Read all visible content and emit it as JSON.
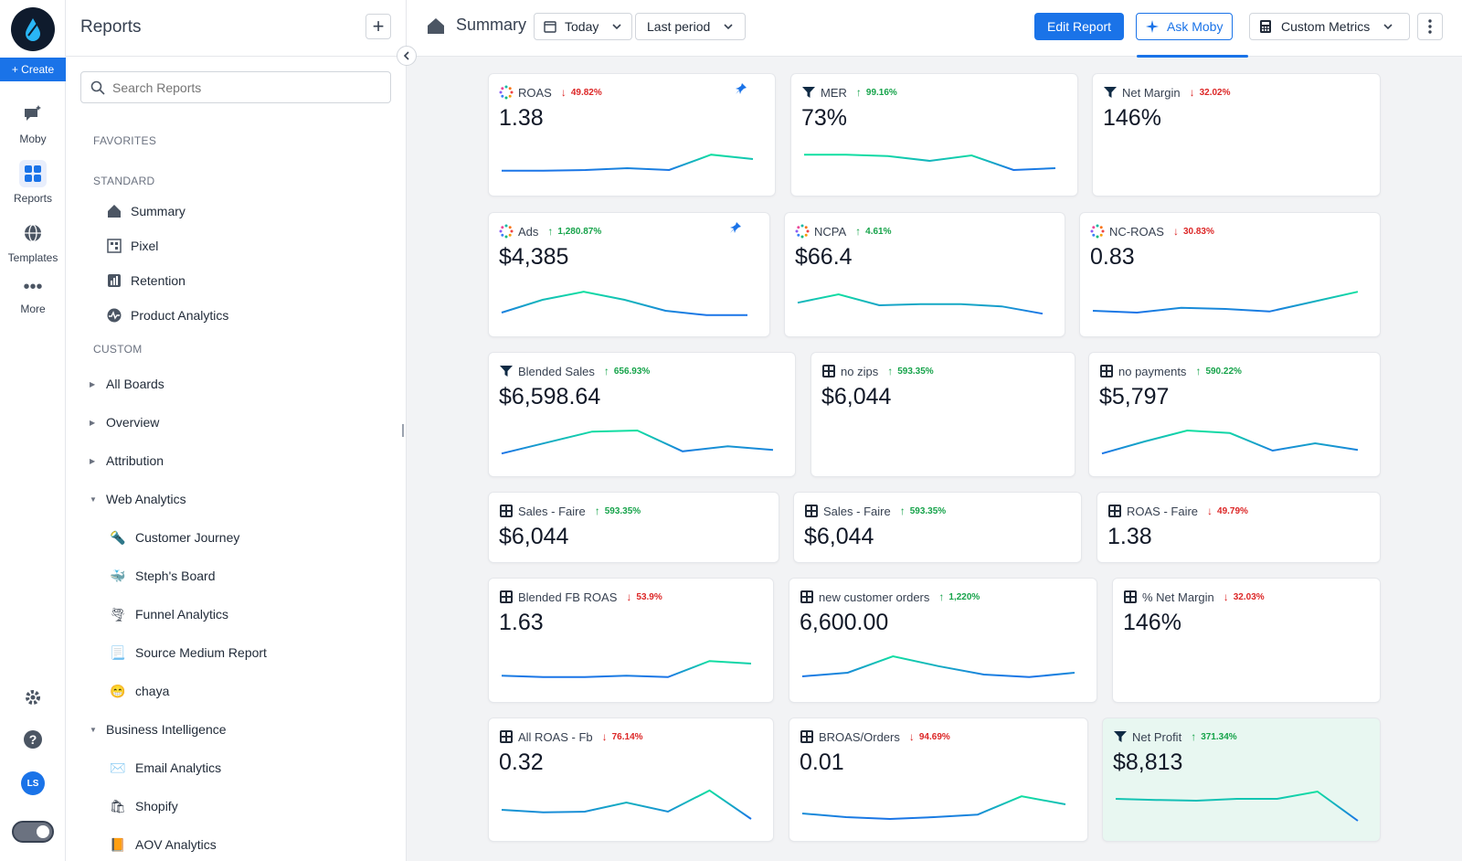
{
  "rail": {
    "create_label": "+ Create",
    "items": [
      {
        "label": "Moby",
        "icon": "chat-sparkle-icon"
      },
      {
        "label": "Reports",
        "icon": "grid-icon"
      },
      {
        "label": "Templates",
        "icon": "globe-icon"
      },
      {
        "label": "More",
        "icon": "dots-icon"
      }
    ],
    "avatar": "LS"
  },
  "sidebar": {
    "title": "Reports",
    "search_placeholder": "Search Reports",
    "favorites_label": "FAVORITES",
    "standard_label": "STANDARD",
    "standard_items": [
      "Summary",
      "Pixel",
      "Retention",
      "Product Analytics"
    ],
    "custom_label": "CUSTOM",
    "tree": [
      "All Boards",
      "Overview",
      "Attribution",
      "Web Analytics",
      "Customer Journey",
      "Steph's Board",
      "Funnel Analytics",
      "Source Medium Report",
      "chaya",
      "Business Intelligence",
      "Email Analytics",
      "Shopify",
      "AOV Analytics"
    ]
  },
  "topbar": {
    "title": "Summary",
    "date_range": "Today",
    "compare": "Last period",
    "edit_report": "Edit Report",
    "ask_moby": "Ask Moby",
    "custom_metrics": "Custom Metrics"
  },
  "cards": [
    {
      "name": "ROAS",
      "change": "49.82%",
      "dir": "down",
      "value": "1.38",
      "icon": "tw",
      "pinned": true,
      "spark": [
        0.18,
        0.18,
        0.2,
        0.25,
        0.2,
        0.62,
        0.5
      ]
    },
    {
      "name": "MER",
      "change": "99.16%",
      "dir": "up",
      "value": "73%",
      "icon": "funnel",
      "pinned": false,
      "spark": [
        0.62,
        0.62,
        0.58,
        0.45,
        0.6,
        0.2,
        0.25
      ]
    },
    {
      "name": "Net Margin",
      "change": "32.02%",
      "dir": "down",
      "value": "146%",
      "icon": "funnel",
      "pinned": false,
      "spark": []
    },
    {
      "name": "Ads",
      "change": "1,280.87%",
      "dir": "up",
      "value": "$4,385",
      "icon": "tw",
      "pinned": true,
      "spark": [
        0.15,
        0.5,
        0.72,
        0.5,
        0.2,
        0.08,
        0.08
      ]
    },
    {
      "name": "NCPA",
      "change": "4.61%",
      "dir": "up",
      "value": "$66.4",
      "icon": "tw",
      "pinned": false,
      "spark": [
        0.42,
        0.65,
        0.35,
        0.38,
        0.38,
        0.32,
        0.12
      ]
    },
    {
      "name": "NC-ROAS",
      "change": "30.83%",
      "dir": "down",
      "value": "0.83",
      "icon": "tw",
      "pinned": false,
      "spark": [
        0.2,
        0.15,
        0.28,
        0.25,
        0.18,
        0.45,
        0.72
      ]
    },
    {
      "name": "Blended Sales",
      "change": "656.93%",
      "dir": "up",
      "value": "$6,598.64",
      "icon": "funnel",
      "pinned": false,
      "spark": [
        0.12,
        0.42,
        0.72,
        0.75,
        0.18,
        0.32,
        0.22
      ]
    },
    {
      "name": "no zips",
      "change": "593.35%",
      "dir": "up",
      "value": "$6,044",
      "icon": "calc",
      "pinned": false,
      "spark": []
    },
    {
      "name": "no payments",
      "change": "590.22%",
      "dir": "up",
      "value": "$5,797",
      "icon": "calc",
      "pinned": false,
      "spark": [
        0.12,
        0.45,
        0.75,
        0.68,
        0.2,
        0.4,
        0.22
      ]
    },
    {
      "name": "Sales - Faire",
      "change": "593.35%",
      "dir": "up",
      "value": "$6,044",
      "icon": "calc",
      "pinned": false,
      "spark": []
    },
    {
      "name": "Sales - Faire",
      "change": "593.35%",
      "dir": "up",
      "value": "$6,044",
      "icon": "calc",
      "pinned": false,
      "spark": []
    },
    {
      "name": "ROAS - Faire",
      "change": "49.79%",
      "dir": "down",
      "value": "1.38",
      "icon": "calc",
      "pinned": false,
      "spark": []
    },
    {
      "name": "Blended FB ROAS",
      "change": "53.9%",
      "dir": "down",
      "value": "1.63",
      "icon": "calc",
      "pinned": false,
      "spark": [
        0.22,
        0.18,
        0.18,
        0.22,
        0.18,
        0.62,
        0.55
      ]
    },
    {
      "name": "new customer orders",
      "change": "1,220%",
      "dir": "up",
      "value": "6,600.00",
      "icon": "calc",
      "pinned": false,
      "spark": [
        0.2,
        0.3,
        0.75,
        0.48,
        0.25,
        0.18,
        0.3
      ]
    },
    {
      "name": "% Net Margin",
      "change": "32.03%",
      "dir": "down",
      "value": "146%",
      "icon": "calc",
      "pinned": false,
      "spark": []
    },
    {
      "name": "All ROAS - Fb",
      "change": "76.14%",
      "dir": "down",
      "value": "0.32",
      "icon": "calc",
      "pinned": false,
      "spark": [
        0.35,
        0.28,
        0.3,
        0.55,
        0.3,
        0.88,
        0.1
      ]
    },
    {
      "name": "BROAS/Orders",
      "change": "94.69%",
      "dir": "down",
      "value": "0.01",
      "icon": "calc",
      "pinned": false,
      "spark": [
        0.25,
        0.15,
        0.1,
        0.15,
        0.22,
        0.72,
        0.5
      ]
    },
    {
      "name": "Net Profit",
      "change": "371.34%",
      "dir": "up",
      "value": "$8,813",
      "icon": "funnel",
      "pinned": false,
      "spark": [
        0.65,
        0.62,
        0.6,
        0.65,
        0.65,
        0.85,
        0.05
      ]
    }
  ]
}
